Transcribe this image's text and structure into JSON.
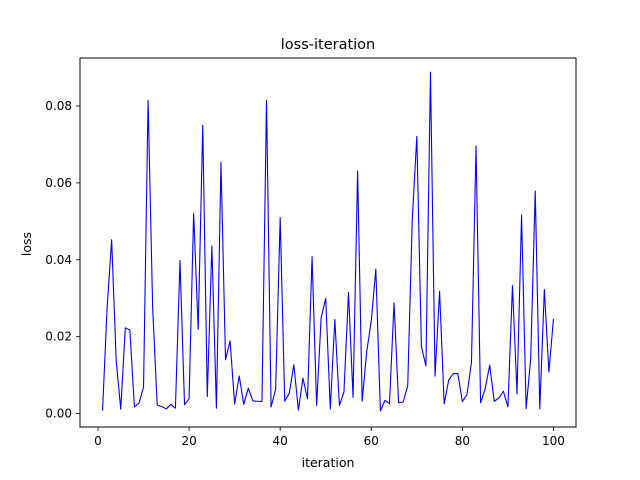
{
  "chart_data": {
    "type": "line",
    "title": "loss-iteration",
    "xlabel": "iteration",
    "ylabel": "loss",
    "xlim": [
      -3.95,
      104.95
    ],
    "ylim": [
      -0.0035,
      0.0925
    ],
    "xticks": [
      0,
      20,
      40,
      60,
      80,
      100
    ],
    "xtick_labels": [
      "0",
      "20",
      "40",
      "60",
      "80",
      "100"
    ],
    "yticks": [
      0.0,
      0.02,
      0.04,
      0.06,
      0.08
    ],
    "ytick_labels": [
      "0.00",
      "0.02",
      "0.04",
      "0.06",
      "0.08"
    ],
    "grid": false,
    "legend": "none",
    "series": [
      {
        "color": "#0000ff",
        "x": [
          1,
          2,
          3,
          4,
          5,
          6,
          7,
          8,
          9,
          10,
          11,
          12,
          13,
          14,
          15,
          16,
          17,
          18,
          19,
          20,
          21,
          22,
          23,
          24,
          25,
          26,
          27,
          28,
          29,
          30,
          31,
          32,
          33,
          34,
          35,
          36,
          37,
          38,
          39,
          40,
          41,
          42,
          43,
          44,
          45,
          46,
          47,
          48,
          49,
          50,
          51,
          52,
          53,
          54,
          55,
          56,
          57,
          58,
          59,
          60,
          61,
          62,
          63,
          64,
          65,
          66,
          67,
          68,
          69,
          70,
          71,
          72,
          73,
          74,
          75,
          76,
          77,
          78,
          79,
          80,
          81,
          82,
          83,
          84,
          85,
          86,
          87,
          88,
          89,
          90,
          91,
          92,
          93,
          94,
          95,
          96,
          97,
          98,
          99,
          100
        ],
        "y": [
          0.0008,
          0.0275,
          0.0452,
          0.0137,
          0.0011,
          0.0223,
          0.0217,
          0.0017,
          0.0027,
          0.0069,
          0.0815,
          0.0275,
          0.0022,
          0.0018,
          0.0012,
          0.0024,
          0.0014,
          0.0398,
          0.0023,
          0.0038,
          0.0521,
          0.0219,
          0.075,
          0.0044,
          0.0436,
          0.0014,
          0.0653,
          0.014,
          0.0189,
          0.0025,
          0.0098,
          0.0024,
          0.0066,
          0.0033,
          0.0032,
          0.0031,
          0.0815,
          0.0017,
          0.0063,
          0.051,
          0.0032,
          0.0053,
          0.0127,
          0.0009,
          0.0092,
          0.0038,
          0.0408,
          0.0021,
          0.025,
          0.03,
          0.0012,
          0.0245,
          0.0021,
          0.0056,
          0.0315,
          0.0042,
          0.0631,
          0.0032,
          0.0161,
          0.0241,
          0.0376,
          0.0007,
          0.0034,
          0.0026,
          0.0288,
          0.0028,
          0.003,
          0.0072,
          0.0505,
          0.0721,
          0.0175,
          0.0124,
          0.0888,
          0.0097,
          0.0318,
          0.0025,
          0.0087,
          0.0104,
          0.0104,
          0.0031,
          0.0049,
          0.0133,
          0.0696,
          0.0028,
          0.0064,
          0.0126,
          0.0032,
          0.004,
          0.0058,
          0.0017,
          0.0333,
          0.0051,
          0.0516,
          0.0013,
          0.0142,
          0.0579,
          0.0012,
          0.0323,
          0.0108,
          0.0246
        ]
      }
    ]
  }
}
